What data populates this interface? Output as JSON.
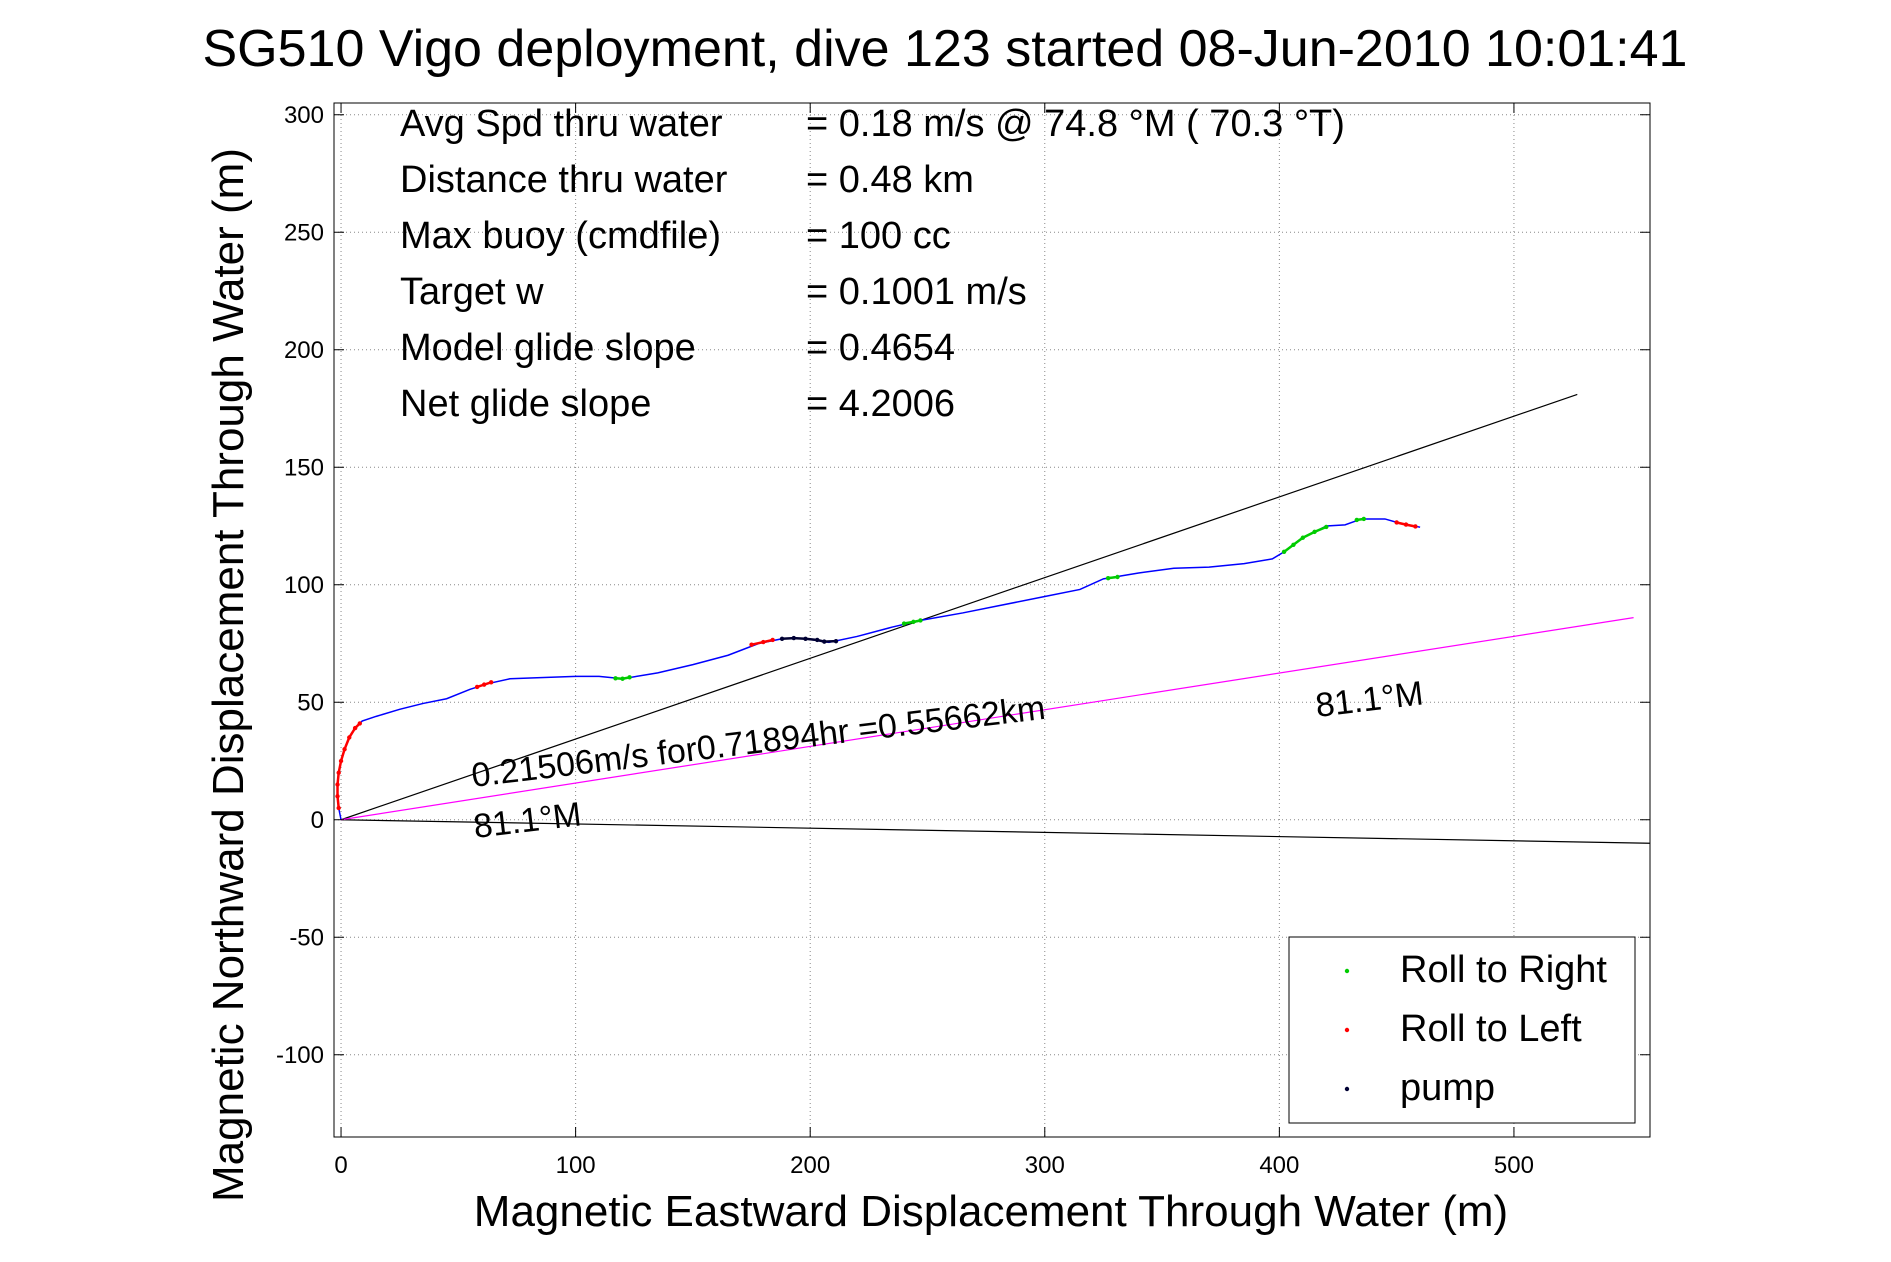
{
  "chart_data": {
    "type": "scatter",
    "title": "SG510 Vigo deployment, dive 123 started 08-Jun-2010 10:01:41",
    "xlabel": "Magnetic Eastward Displacement Through Water (m)",
    "ylabel": "Magnetic Northward Displacement Through Water (m)",
    "xlim": [
      -3,
      558
    ],
    "ylim": [
      -135,
      305
    ],
    "xticks": [
      0,
      100,
      200,
      300,
      400,
      500
    ],
    "yticks": [
      -100,
      -50,
      0,
      50,
      100,
      150,
      200,
      250,
      300
    ],
    "grid": true,
    "legend_position": "bottom-right",
    "stats": [
      {
        "label": "Avg Spd thru water",
        "value": "=  0.18 m/s @  74.8 °M ( 70.3 °T)"
      },
      {
        "label": "Distance thru water",
        "value": "=  0.48 km"
      },
      {
        "label": "Max buoy (cmdfile)",
        "value": "= 100 cc"
      },
      {
        "label": "Target w",
        "value": "= 0.1001 m/s"
      },
      {
        "label": "Model glide slope",
        "value": "= 0.4654"
      },
      {
        "label": "Net glide slope",
        "value": "= 4.2006"
      }
    ],
    "annotations": {
      "current_text": "0.21506m/s for0.71894hr =0.55662km",
      "heading_label_1": "81.1°M",
      "heading_label_2": "81.1°M"
    },
    "series": [
      {
        "name": "Roll to Right",
        "color": "#00cc00",
        "marker": "dot"
      },
      {
        "name": "Roll to Left",
        "color": "#ff0000",
        "marker": "dot"
      },
      {
        "name": "pump",
        "color": "#000033",
        "marker": "dot"
      }
    ],
    "track": {
      "color": "#0000ff",
      "points": [
        [
          0,
          0
        ],
        [
          -1,
          5
        ],
        [
          -1.5,
          10
        ],
        [
          -1.5,
          15
        ],
        [
          -1,
          20
        ],
        [
          0,
          25
        ],
        [
          1.5,
          30
        ],
        [
          3.5,
          35
        ],
        [
          6,
          39
        ],
        [
          9,
          42
        ],
        [
          15,
          44
        ],
        [
          25,
          47
        ],
        [
          35,
          49.5
        ],
        [
          45,
          51.5
        ],
        [
          55,
          55.5
        ],
        [
          63,
          58
        ],
        [
          72,
          60
        ],
        [
          85,
          60.5
        ],
        [
          100,
          61
        ],
        [
          110,
          61
        ],
        [
          120,
          60
        ],
        [
          135,
          62.5
        ],
        [
          150,
          66
        ],
        [
          165,
          70
        ],
        [
          178,
          75
        ],
        [
          188,
          77
        ],
        [
          198,
          77
        ],
        [
          208,
          75.5
        ],
        [
          220,
          78
        ],
        [
          235,
          82
        ],
        [
          248,
          85
        ],
        [
          265,
          88
        ],
        [
          280,
          91
        ],
        [
          300,
          95
        ],
        [
          315,
          98
        ],
        [
          325,
          102.5
        ],
        [
          340,
          105
        ],
        [
          355,
          107
        ],
        [
          370,
          107.5
        ],
        [
          385,
          109
        ],
        [
          397,
          111
        ],
        [
          402,
          114
        ],
        [
          410,
          120
        ],
        [
          420,
          125
        ],
        [
          428,
          125.5
        ],
        [
          435,
          128
        ],
        [
          445,
          128
        ],
        [
          452,
          126
        ],
        [
          460,
          124.5
        ]
      ],
      "segments": [
        {
          "series": "Roll to Left",
          "points": [
            [
              -1,
              5
            ],
            [
              -1.5,
              10
            ],
            [
              -1.5,
              15
            ],
            [
              -1,
              20
            ],
            [
              0,
              25
            ],
            [
              1.5,
              30
            ],
            [
              3.5,
              35
            ],
            [
              6,
              39
            ],
            [
              8,
              41
            ]
          ]
        },
        {
          "series": "Roll to Left",
          "points": [
            [
              58,
              56.5
            ],
            [
              61,
              57.5
            ],
            [
              64,
              58.5
            ]
          ]
        },
        {
          "series": "Roll to Right",
          "points": [
            [
              117,
              60.2
            ],
            [
              120,
              60
            ],
            [
              123,
              60.6
            ]
          ]
        },
        {
          "series": "Roll to Left",
          "points": [
            [
              175,
              74.5
            ],
            [
              180,
              75.6
            ],
            [
              184,
              76.5
            ]
          ]
        },
        {
          "series": "pump",
          "points": [
            [
              188,
              77
            ],
            [
              193,
              77.3
            ],
            [
              198,
              77
            ],
            [
              203,
              76.5
            ],
            [
              206,
              75.8
            ],
            [
              211,
              76
            ]
          ]
        },
        {
          "series": "Roll to Right",
          "points": [
            [
              240,
              83.5
            ],
            [
              244,
              84.2
            ],
            [
              247,
              84.8
            ]
          ]
        },
        {
          "series": "Roll to Right",
          "points": [
            [
              327,
              102.8
            ],
            [
              331,
              103.3
            ]
          ]
        },
        {
          "series": "Roll to Right",
          "points": [
            [
              402,
              114
            ],
            [
              406,
              117
            ],
            [
              410,
              120
            ],
            [
              415,
              122.5
            ],
            [
              420,
              124.6
            ]
          ]
        },
        {
          "series": "Roll to Right",
          "points": [
            [
              433,
              127.6
            ],
            [
              436,
              128
            ]
          ]
        },
        {
          "series": "Roll to Left",
          "points": [
            [
              450,
              126.5
            ],
            [
              454,
              125.6
            ],
            [
              458,
              124.8
            ]
          ]
        }
      ]
    },
    "lines": [
      {
        "name": "",
        "color": "#000000",
        "from": [
          0,
          0
        ],
        "to": [
          527,
          181
        ]
      },
      {
        "name": "",
        "color": "#000000",
        "from": [
          0,
          0
        ],
        "to": [
          558,
          -10
        ]
      },
      {
        "name": "",
        "color": "#ff00ff",
        "from": [
          0,
          0
        ],
        "to": [
          551,
          86
        ]
      }
    ]
  }
}
